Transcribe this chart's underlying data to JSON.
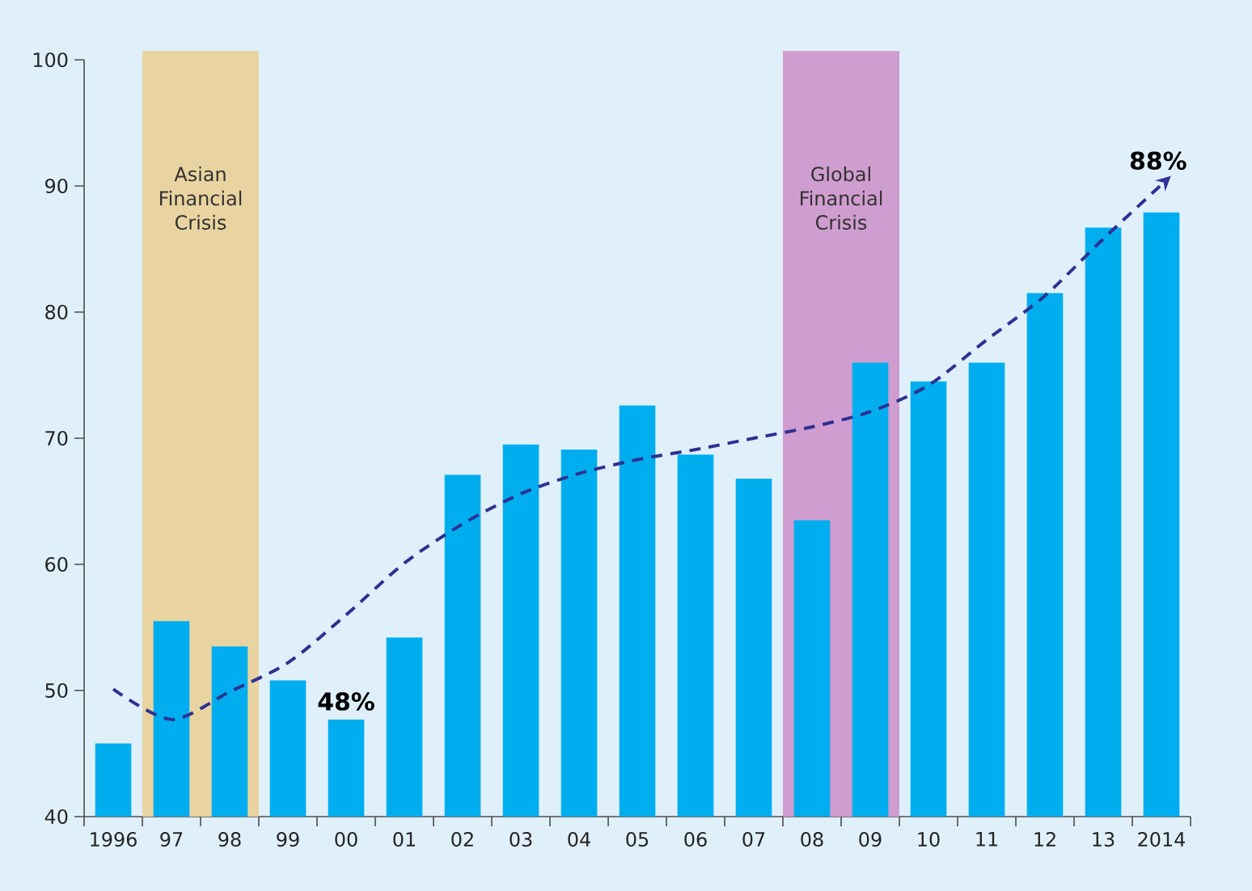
{
  "chart_data": {
    "type": "bar",
    "categories": [
      "1996",
      "97",
      "98",
      "99",
      "00",
      "01",
      "02",
      "03",
      "04",
      "05",
      "06",
      "07",
      "08",
      "09",
      "10",
      "11",
      "12",
      "13",
      "2014"
    ],
    "series": [
      {
        "color": "#00aeef",
        "values": [
          45.8,
          55.5,
          53.5,
          50.8,
          47.7,
          54.2,
          67.1,
          69.5,
          69.1,
          72.6,
          68.7,
          66.8,
          63.5,
          76.0,
          74.5,
          76.0,
          81.5,
          86.7,
          87.9
        ]
      },
      {
        "type": "line",
        "color": "#2e3192",
        "line_style": "dashed",
        "values": [
          50.1,
          47.7,
          49.9,
          52.2,
          56.0,
          60.1,
          63.2,
          65.6,
          67.2,
          68.3,
          69.1,
          70.0,
          70.9,
          72.1,
          74.2,
          77.8,
          81.3,
          85.8,
          90.1
        ]
      }
    ],
    "ylim": [
      40,
      100
    ],
    "yticks": [
      40,
      50,
      60,
      70,
      80,
      90,
      100
    ],
    "bands": [
      {
        "axis": "x",
        "from": "97",
        "to": "98",
        "label": "Asian Financial Crisis",
        "color": "#e9d3a0"
      },
      {
        "axis": "x",
        "from": "08",
        "to": "09",
        "label": "Global Financial Crisis",
        "color": "#cf9dd0"
      }
    ],
    "annotations": [
      {
        "text": "48%",
        "x": "00",
        "y": 48
      },
      "88%"
    ]
  }
}
